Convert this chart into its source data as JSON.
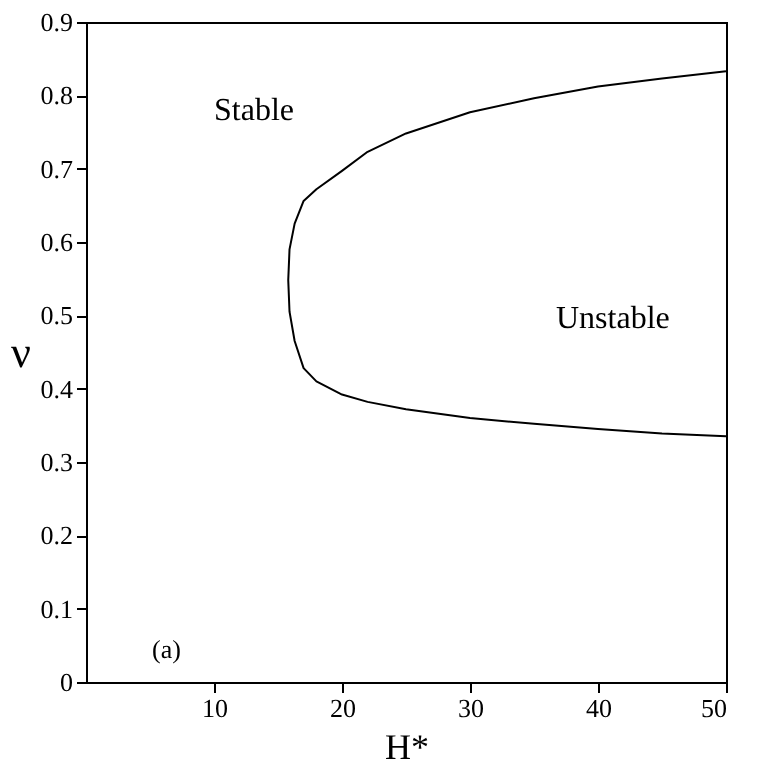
{
  "chart_data": {
    "type": "line",
    "xlabel": "H*",
    "ylabel": "ν",
    "x": [
      50,
      45,
      40,
      35,
      30,
      25,
      22,
      20,
      18,
      17,
      16.3,
      15.9,
      15.8,
      15.9,
      16.3,
      17,
      18,
      20,
      22,
      25,
      30,
      35,
      40,
      45,
      50
    ],
    "series": [
      {
        "color": "#000000",
        "values": [
          0.833,
          0.823,
          0.812,
          0.796,
          0.777,
          0.748,
          0.723,
          0.697,
          0.672,
          0.656,
          0.625,
          0.59,
          0.548,
          0.505,
          0.465,
          0.428,
          0.41,
          0.392,
          0.382,
          0.372,
          0.36,
          0.352,
          0.345,
          0.339,
          0.335
        ]
      }
    ],
    "xlim": [
      0,
      50
    ],
    "xticks": [
      10,
      20,
      30,
      40,
      50
    ],
    "ylim": [
      0,
      0.9
    ],
    "yticks": [
      0,
      0.1,
      0.2,
      0.3,
      0.4,
      0.5,
      0.6,
      0.7,
      0.8,
      0.9
    ],
    "grid": false,
    "marker": "none",
    "line_style": "solid",
    "annotations": [
      "Stable",
      "Unstable",
      "(a)"
    ]
  }
}
